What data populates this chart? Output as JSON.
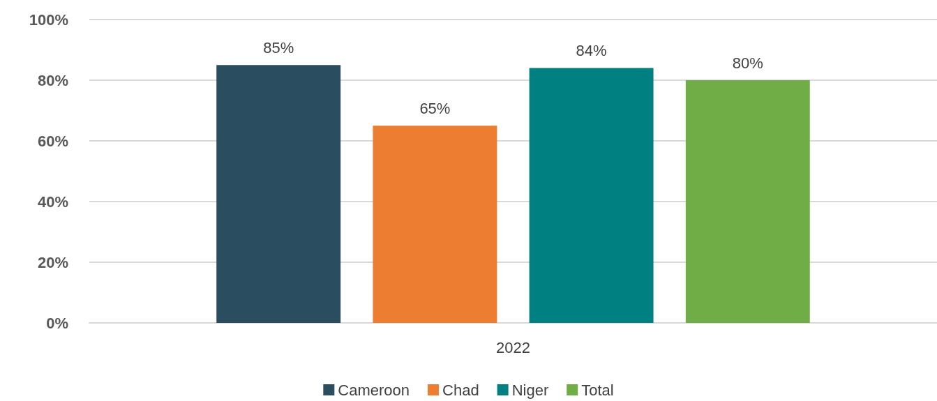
{
  "chart_data": {
    "type": "bar",
    "categories": [
      "2022"
    ],
    "series": [
      {
        "name": "Cameroon",
        "color": "#2a4d5f",
        "values": [
          85
        ],
        "value_labels": [
          "85%"
        ]
      },
      {
        "name": "Chad",
        "color": "#ed7d31",
        "values": [
          65
        ],
        "value_labels": [
          "65%"
        ]
      },
      {
        "name": "Niger",
        "color": "#008080",
        "values": [
          84
        ],
        "value_labels": [
          "84%"
        ]
      },
      {
        "name": "Total",
        "color": "#70ad47",
        "values": [
          80
        ],
        "value_labels": [
          "80%"
        ]
      }
    ],
    "ylim": [
      0,
      100
    ],
    "yticks": [
      {
        "value": 0,
        "label": "0%"
      },
      {
        "value": 20,
        "label": "20%"
      },
      {
        "value": 40,
        "label": "40%"
      },
      {
        "value": 60,
        "label": "60%"
      },
      {
        "value": 80,
        "label": "80%"
      },
      {
        "value": 100,
        "label": "100%"
      }
    ],
    "grid": "y",
    "legend": "bottom"
  }
}
